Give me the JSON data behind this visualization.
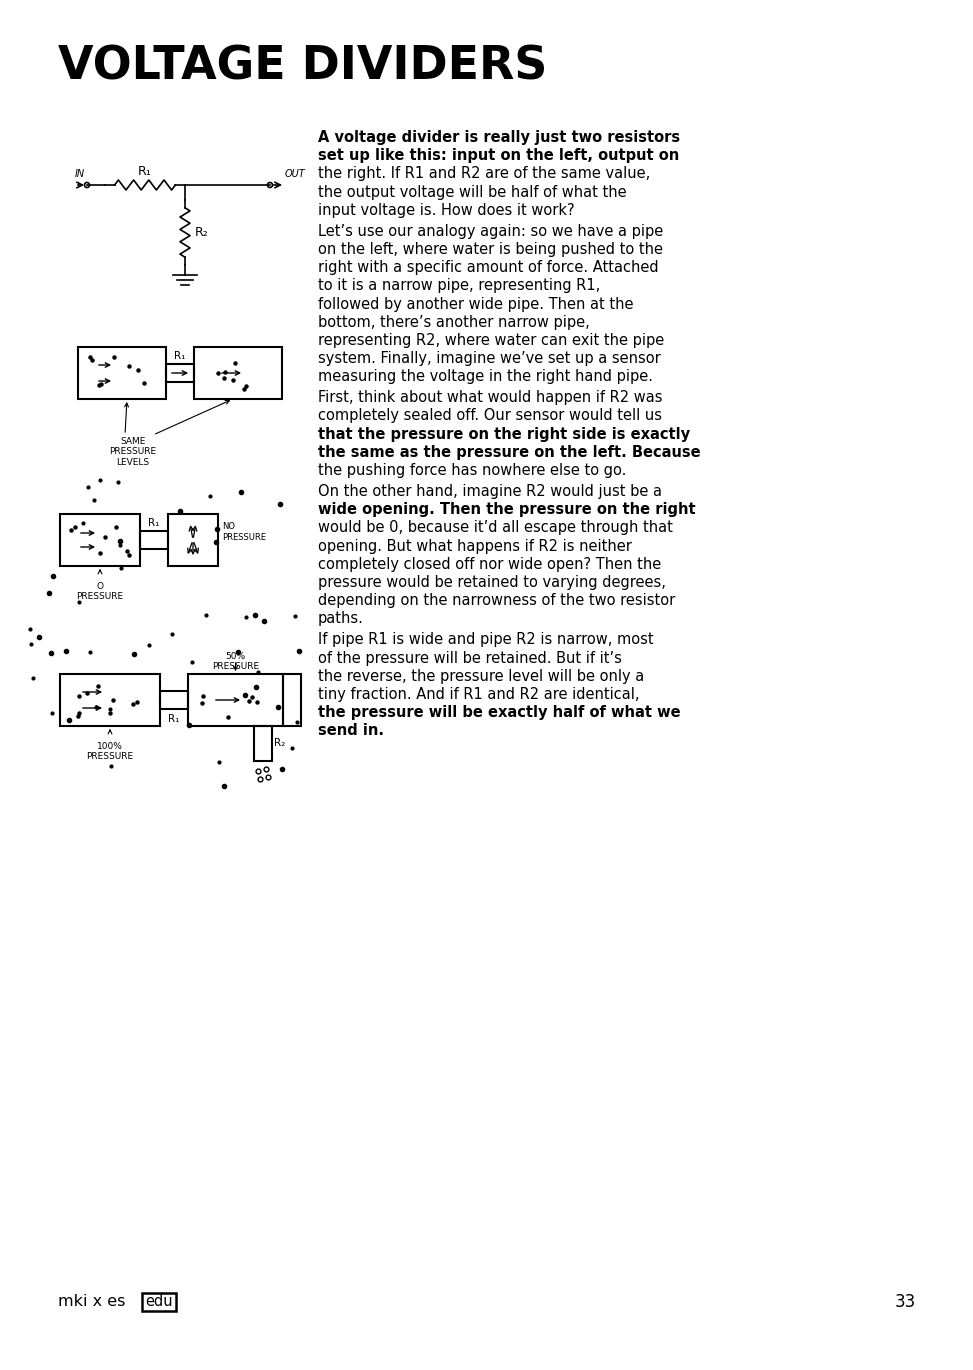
{
  "title": "VOLTAGE DIVIDERS",
  "bg_color": "#ffffff",
  "text_color": "#000000",
  "page_number": "33",
  "para1_bold": "A voltage divider is really just two resistors set up like this: input on the left, output on the right.",
  "para1_normal": " If R1 and R2 are of the same value, the output voltage will be half of what the input voltage is. How does it work?",
  "para2": "Let’s use our analogy again: so we have a pipe on the left, where water is being pushed to the right with a specific amount of force. Attached to it is a narrow pipe, representing R1, followed by another wide pipe. Then at the bottom, there’s another narrow pipe, representing R2, where water can exit the pipe system. Finally, imagine we’ve set up a sensor measuring the voltage in the right hand pipe.",
  "para3_normal1": "First, think about what would happen if R2 was completely sealed off. Our sensor would tell us that ",
  "para3_bold": "the pressure on the right side is exactly the same as the pressure on the left.",
  "para3_normal2": " Because the pushing force has nowhere else to go.",
  "para4_normal1": "On the other hand, imagine R2 would just be a wide opening. Then ",
  "para4_bold": "the pressure on the right would be 0,",
  "para4_normal2": " because it’d all escape through that opening. But what happens if R2 is neither completely closed off nor wide open? Then the pressure would be retained to varying degrees, depending on the narrowness of the two resistor paths.",
  "para5_normal1": "If pipe R1 is wide and pipe R2 is narrow, most of the pressure will be retained. But if it’s the reverse, the pressure level will be only a tiny fraction. And if R1 and R2 are identical, ",
  "para5_bold": "the pressure will be exactly half of what we send in.",
  "logo_text": "mki x es",
  "logo_edu": "edu"
}
